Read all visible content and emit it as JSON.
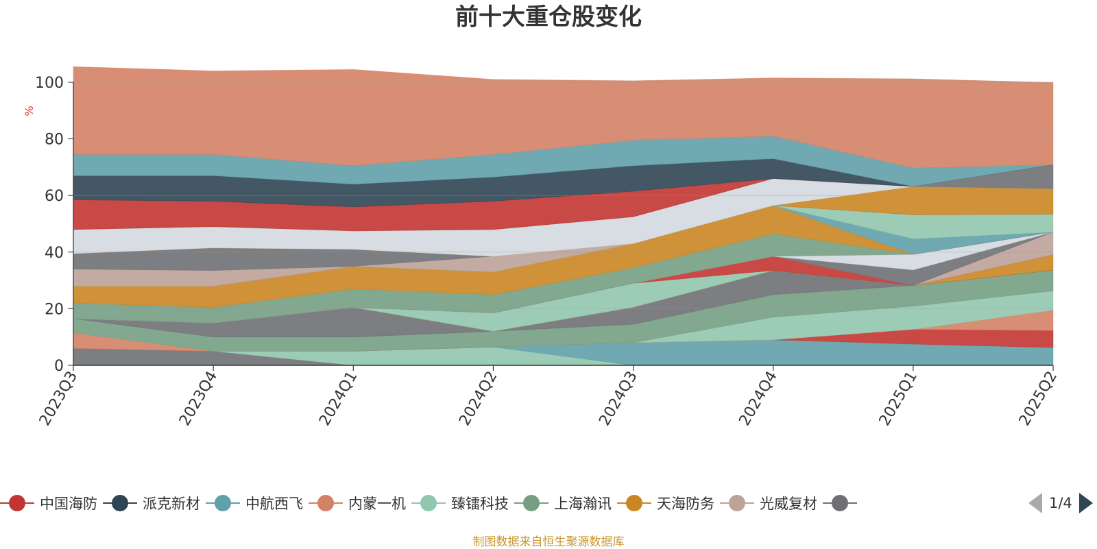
{
  "colors": {
    "title": "#333333",
    "axis": "#333333",
    "unit": "#e03030",
    "source": "#c9962a",
    "pager_active": "#2f4554",
    "pager_inactive": "#aaaaaa"
  },
  "chart_data": {
    "type": "area",
    "stacked": true,
    "title": "前十大重仓股变化",
    "ylabel": "%",
    "xlabel": "",
    "ylim": [
      0,
      100
    ],
    "yticks": [
      "0",
      "20",
      "40",
      "60",
      "80",
      "100"
    ],
    "grid": true,
    "legend_position": "bottom",
    "categories": [
      "2023Q3",
      "2023Q4",
      "2024Q1",
      "2024Q2",
      "2024Q3",
      "2024Q4",
      "2025Q1",
      "2025Q2"
    ],
    "series": [
      {
        "name": "",
        "color": "#6e7074",
        "values": [
          6,
          5,
          0,
          0,
          0,
          0,
          0,
          0
        ]
      },
      {
        "name": "",
        "color": "#91c7ae",
        "values": [
          0,
          0,
          5,
          6.5,
          0,
          0,
          0,
          0
        ]
      },
      {
        "name": "",
        "color": "#61a0a8",
        "values": [
          0,
          0,
          0,
          0,
          8,
          9,
          7.5,
          6.3
        ]
      },
      {
        "name": "中国海防",
        "color": "#c23531",
        "values": [
          0,
          0,
          0,
          0,
          0,
          0,
          5.2,
          6
        ]
      },
      {
        "name": "",
        "color": "#d48265",
        "values": [
          5.5,
          0,
          0,
          0,
          0,
          0,
          0,
          7.2
        ]
      },
      {
        "name": "",
        "color": "#91c7ae",
        "values": [
          0,
          0,
          0,
          0,
          0,
          8,
          8.2,
          6.8
        ]
      },
      {
        "name": "",
        "color": "#749f83",
        "values": [
          5,
          5,
          5,
          5.5,
          6.5,
          8,
          7.3,
          7.3
        ]
      },
      {
        "name": "",
        "color": "#6e7074",
        "values": [
          0,
          5,
          10.5,
          0,
          6,
          8.5,
          0,
          0
        ]
      },
      {
        "name": "",
        "color": "#2f4554",
        "values": [
          0,
          0,
          0,
          0,
          0,
          0,
          0,
          0
        ]
      },
      {
        "name": "",
        "color": "#d48265",
        "values": [
          0,
          0,
          0,
          0,
          0,
          0,
          0,
          0
        ]
      },
      {
        "name": "",
        "color": "#ca8622",
        "values": [
          0,
          0,
          0,
          0,
          0,
          0,
          0,
          5.5
        ]
      },
      {
        "name": "",
        "color": "#91c7ae",
        "values": [
          0,
          0,
          0,
          6.5,
          8.5,
          0,
          0,
          0
        ]
      },
      {
        "name": "",
        "color": "#c23531",
        "values": [
          0,
          0,
          0,
          0,
          0,
          5,
          0,
          0
        ]
      },
      {
        "name": "",
        "color": "#bda29a",
        "values": [
          0,
          0,
          0,
          0,
          0,
          0,
          0,
          8
        ]
      },
      {
        "name": "",
        "color": "#6e7074",
        "values": [
          0,
          0,
          0,
          0,
          0,
          0,
          5.5,
          0
        ]
      },
      {
        "name": "",
        "color": "#d3d9df",
        "values": [
          0,
          0,
          0,
          0,
          0,
          0,
          5.5,
          0
        ]
      },
      {
        "name": "",
        "color": "#749f83",
        "values": [
          5.5,
          5.5,
          6.5,
          6.5,
          5.5,
          8,
          0,
          0
        ]
      },
      {
        "name": "",
        "color": "#ca8622",
        "values": [
          6,
          7.5,
          8,
          8,
          8.5,
          10,
          0,
          0
        ]
      },
      {
        "name": "",
        "color": "#61a0a8",
        "values": [
          0,
          0,
          0,
          0,
          0,
          0,
          5.5,
          0
        ]
      },
      {
        "name": "",
        "color": "#91c7ae",
        "values": [
          0,
          0,
          0,
          0,
          0,
          0,
          8.5,
          6.3
        ]
      },
      {
        "name": "",
        "color": "#bda29a",
        "values": [
          6,
          5.5,
          0,
          5.5,
          0,
          0,
          0,
          0
        ]
      },
      {
        "name": "",
        "color": "#6e7074",
        "values": [
          5.5,
          8,
          6,
          0,
          0,
          0,
          0,
          0
        ]
      },
      {
        "name": "",
        "color": "#ca8622",
        "values": [
          0,
          0,
          0,
          0,
          0,
          0,
          10,
          9
        ]
      },
      {
        "name": "",
        "color": "#d3d9df",
        "values": [
          8.5,
          7.5,
          6.5,
          9.5,
          9.5,
          9.5,
          0,
          0
        ]
      },
      {
        "name": "",
        "color": "#6e7074",
        "values": [
          0,
          0,
          0,
          0,
          0,
          0,
          0,
          8.5
        ]
      },
      {
        "name": "",
        "color": "#c23531",
        "values": [
          10.5,
          9,
          8.5,
          10,
          9,
          0,
          0,
          0
        ]
      },
      {
        "name": "",
        "color": "#2f4554",
        "values": [
          8.5,
          9,
          8,
          8.5,
          9,
          7,
          0,
          0
        ]
      },
      {
        "name": "",
        "color": "#61a0a8",
        "values": [
          7.5,
          7.5,
          6.5,
          8,
          9,
          8,
          6.5,
          0
        ]
      },
      {
        "name": "",
        "color": "#d48265",
        "values": [
          31,
          29.5,
          34,
          26.5,
          21,
          20.5,
          31.5,
          29
        ]
      }
    ]
  },
  "legend": {
    "items": [
      {
        "label": "中国海防",
        "color": "#c23531"
      },
      {
        "label": "派克新材",
        "color": "#2f4554"
      },
      {
        "label": "中航西飞",
        "color": "#61a0a8"
      },
      {
        "label": "内蒙一机",
        "color": "#d48265"
      },
      {
        "label": "臻镭科技",
        "color": "#91c7ae"
      },
      {
        "label": "上海瀚讯",
        "color": "#749f83"
      },
      {
        "label": "天海防务",
        "color": "#ca8622"
      },
      {
        "label": "光威复材",
        "color": "#bda29a"
      },
      {
        "label": "",
        "color": "#6e7074"
      }
    ]
  },
  "pager": {
    "text": "1/4"
  },
  "source_note": "制图数据来自恒生聚源数据库"
}
